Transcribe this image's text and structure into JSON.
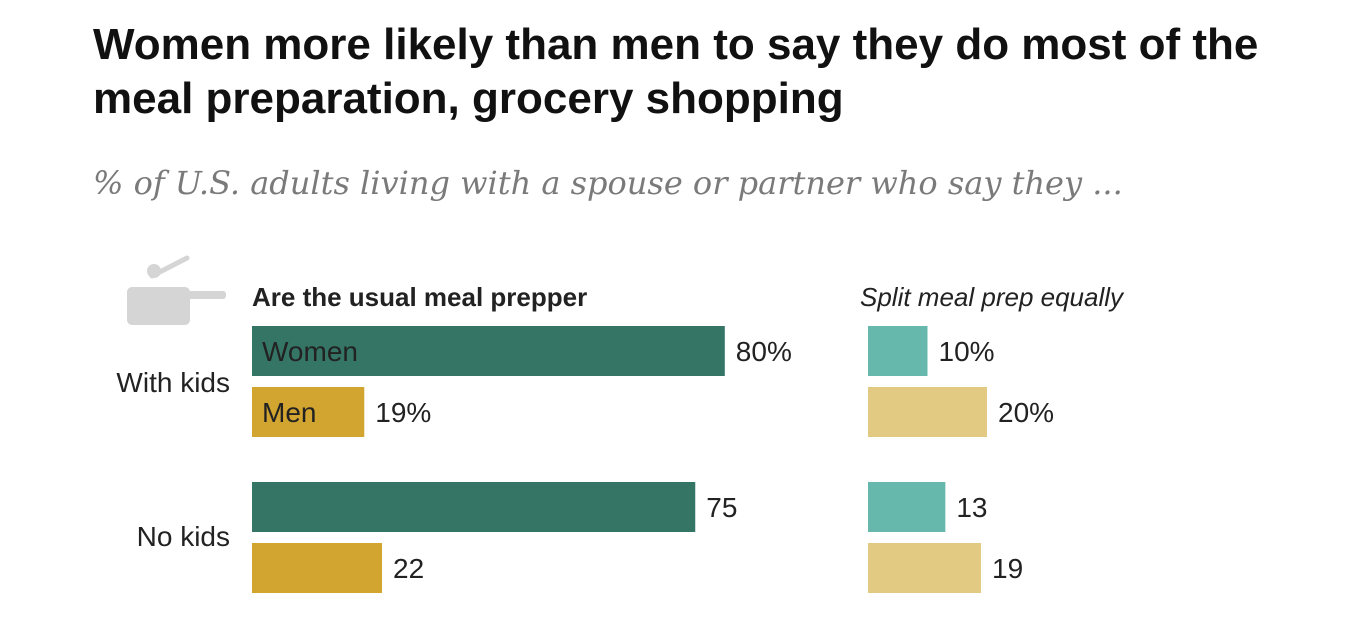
{
  "header": {
    "title": "Women more likely than men to say they do most of the meal preparation, grocery shopping",
    "subtitle": "% of U.S. adults living with a spouse or partner who say they ..."
  },
  "icon": "cooking-pot-icon",
  "colors": {
    "women_dark": "#357566",
    "men_dark": "#d2a530",
    "women_light": "#66b8ac",
    "men_light": "#e2ca82",
    "text": "#222222",
    "inside_label": "#ffffff"
  },
  "chart_data": [
    {
      "type": "bar",
      "orientation": "horizontal",
      "title": "Are the usual meal prepper",
      "categories": [
        "With kids",
        "No kids"
      ],
      "series": [
        {
          "name": "Women",
          "values": [
            80,
            75
          ],
          "value_labels": [
            "80%",
            "75"
          ]
        },
        {
          "name": "Men",
          "values": [
            19,
            22
          ],
          "value_labels": [
            "19%",
            "22"
          ]
        }
      ],
      "xlim": [
        0,
        100
      ]
    },
    {
      "type": "bar",
      "orientation": "horizontal",
      "title": "Split meal prep equally",
      "categories": [
        "With kids",
        "No kids"
      ],
      "series": [
        {
          "values": [
            10,
            13
          ],
          "value_labels": [
            "10%",
            "13"
          ]
        },
        {
          "values": [
            20,
            19
          ],
          "value_labels": [
            "20%",
            "19"
          ]
        }
      ],
      "xlim": [
        0,
        100
      ]
    }
  ]
}
